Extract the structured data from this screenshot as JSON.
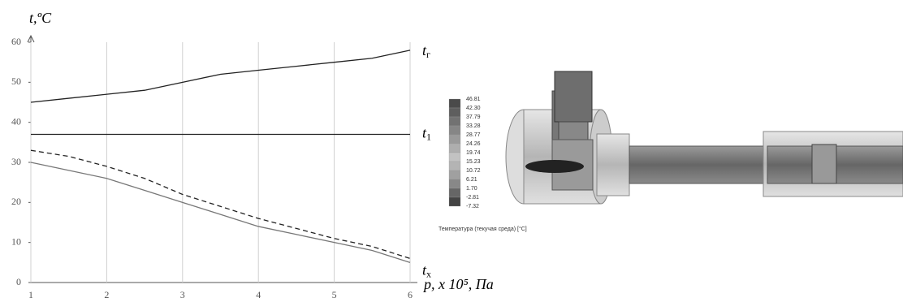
{
  "chart_data": {
    "type": "line",
    "ylabel": "t,ºC",
    "xlabel": "p, x 10⁵, Па",
    "x": [
      1,
      1.5,
      2,
      2.5,
      3,
      3.5,
      4,
      4.5,
      5,
      5.5,
      6
    ],
    "xlim": [
      1,
      6
    ],
    "xticks": [
      1,
      2,
      3,
      4,
      5,
      6
    ],
    "ylim": [
      0,
      60
    ],
    "yticks": [
      0,
      10,
      20,
      30,
      40,
      50,
      60
    ],
    "grid": "x",
    "series": [
      {
        "name": "t",
        "name_sub": "г",
        "color": "#222222",
        "dash": false,
        "values": [
          45,
          46,
          47,
          48,
          50,
          52,
          53,
          54,
          55,
          56,
          58
        ]
      },
      {
        "name": "t",
        "name_sub": "1",
        "color": "#222222",
        "dash": false,
        "values": [
          37,
          37,
          37,
          37,
          37,
          37,
          37,
          37,
          37,
          37,
          37
        ]
      },
      {
        "name": "t",
        "name_sub": "x",
        "color": "#222222",
        "dash": true,
        "values": [
          33,
          31.5,
          29,
          26,
          22,
          19,
          16,
          13.5,
          11,
          9,
          6
        ]
      },
      {
        "color": "#777777",
        "dash": false,
        "values": [
          30,
          28,
          26,
          23,
          20,
          17,
          14,
          12,
          10,
          8,
          5
        ]
      }
    ]
  },
  "simulation": {
    "scale_labels": [
      "46.81",
      "42.30",
      "37.79",
      "33.28",
      "28.77",
      "24.26",
      "19.74",
      "15.23",
      "10.72",
      "6.21",
      "1.70",
      "-2.81",
      "-7.32"
    ],
    "caption": "Температура (текучая среда) [°C]"
  }
}
